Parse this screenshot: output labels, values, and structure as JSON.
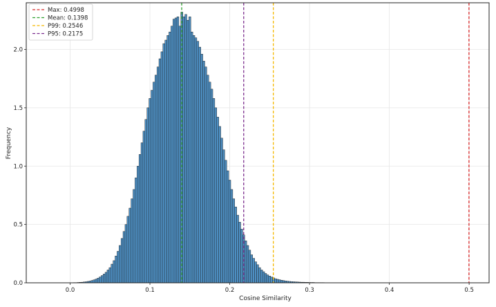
{
  "chart_data": {
    "type": "bar",
    "xlabel": "Cosine Similarity",
    "ylabel": "Frequency",
    "xlim": [
      -0.055,
      0.525
    ],
    "ylim": [
      0,
      2.4
    ],
    "grid": true,
    "legend_position": "top-left",
    "x_ticks": [
      0.0,
      0.1,
      0.2,
      0.3,
      0.4,
      0.5
    ],
    "x_tick_labels": [
      "0.0",
      "0.1",
      "0.2",
      "0.3",
      "0.4",
      "0.5"
    ],
    "y_ticks": [
      0.0,
      0.5,
      1.0,
      1.5,
      2.0
    ],
    "y_tick_labels": [
      "0.0",
      "0.5",
      "1.0",
      "1.5",
      "2.0"
    ],
    "bar_color": "#4e90c4",
    "bar_edge_color": "#1a1a1a",
    "bin_width": 0.0025,
    "histogram": {
      "bin_centers": [
        -0.0025,
        0.0,
        0.0025,
        0.005,
        0.0075,
        0.01,
        0.0125,
        0.015,
        0.0175,
        0.02,
        0.0225,
        0.025,
        0.0275,
        0.03,
        0.0325,
        0.035,
        0.0375,
        0.04,
        0.0425,
        0.045,
        0.0475,
        0.05,
        0.0525,
        0.055,
        0.0575,
        0.06,
        0.0625,
        0.065,
        0.0675,
        0.07,
        0.0725,
        0.075,
        0.0775,
        0.08,
        0.0825,
        0.085,
        0.0875,
        0.09,
        0.0925,
        0.095,
        0.0975,
        0.1,
        0.1025,
        0.105,
        0.1075,
        0.11,
        0.1125,
        0.115,
        0.1175,
        0.12,
        0.1225,
        0.125,
        0.1275,
        0.13,
        0.1325,
        0.135,
        0.1375,
        0.14,
        0.1425,
        0.145,
        0.1475,
        0.15,
        0.1525,
        0.155,
        0.1575,
        0.16,
        0.1625,
        0.165,
        0.1675,
        0.17,
        0.1725,
        0.175,
        0.1775,
        0.18,
        0.1825,
        0.185,
        0.1875,
        0.19,
        0.1925,
        0.195,
        0.1975,
        0.2,
        0.2025,
        0.205,
        0.2075,
        0.21,
        0.2125,
        0.215,
        0.2175,
        0.22,
        0.2225,
        0.225,
        0.2275,
        0.23,
        0.2325,
        0.235,
        0.2375,
        0.24,
        0.2425,
        0.245,
        0.2475,
        0.25,
        0.2525,
        0.255,
        0.2575,
        0.26,
        0.2625,
        0.265,
        0.2675,
        0.27,
        0.2725,
        0.275,
        0.2775,
        0.28,
        0.2825,
        0.285,
        0.2875,
        0.29,
        0.2925,
        0.295,
        0.2975,
        0.3,
        0.3025,
        0.305,
        0.3075,
        0.31,
        0.3125,
        0.315,
        0.3175,
        0.32,
        0.3225,
        0.325,
        0.3275,
        0.33,
        0.3325,
        0.335,
        0.3375,
        0.34,
        0.3425,
        0.345,
        0.3475,
        0.35,
        0.3525,
        0.355,
        0.3575,
        0.36,
        0.3625,
        0.365,
        0.3675,
        0.37,
        0.3725,
        0.375,
        0.3775,
        0.38,
        0.3825,
        0.385
      ],
      "frequencies": [
        0.0,
        0.001,
        0.001,
        0.002,
        0.002,
        0.003,
        0.004,
        0.005,
        0.007,
        0.009,
        0.012,
        0.015,
        0.02,
        0.025,
        0.032,
        0.04,
        0.05,
        0.062,
        0.075,
        0.09,
        0.11,
        0.13,
        0.16,
        0.19,
        0.23,
        0.27,
        0.32,
        0.38,
        0.44,
        0.5,
        0.57,
        0.64,
        0.72,
        0.8,
        0.9,
        1.0,
        1.1,
        1.2,
        1.3,
        1.4,
        1.5,
        1.58,
        1.65,
        1.72,
        1.78,
        1.85,
        1.92,
        1.98,
        2.05,
        2.08,
        2.12,
        2.15,
        2.2,
        2.26,
        2.27,
        2.28,
        2.2,
        2.32,
        2.28,
        2.3,
        2.25,
        2.28,
        2.15,
        2.12,
        2.1,
        2.07,
        2.02,
        1.96,
        1.9,
        1.85,
        1.78,
        1.72,
        1.66,
        1.58,
        1.5,
        1.42,
        1.34,
        1.24,
        1.14,
        1.05,
        0.96,
        0.88,
        0.8,
        0.72,
        0.65,
        0.58,
        0.52,
        0.46,
        0.41,
        0.36,
        0.32,
        0.28,
        0.24,
        0.21,
        0.18,
        0.155,
        0.13,
        0.11,
        0.095,
        0.08,
        0.068,
        0.058,
        0.05,
        0.042,
        0.035,
        0.03,
        0.026,
        0.022,
        0.019,
        0.016,
        0.014,
        0.012,
        0.01,
        0.009,
        0.008,
        0.007,
        0.006,
        0.005,
        0.005,
        0.004,
        0.004,
        0.003,
        0.003,
        0.003,
        0.002,
        0.002,
        0.002,
        0.002,
        0.002,
        0.001,
        0.001,
        0.001,
        0.001,
        0.001,
        0.001,
        0.001,
        0.001,
        0.001,
        0.001,
        0.001,
        0.001,
        0.001,
        0.001,
        0.001,
        0.001,
        0.001,
        0.001,
        0.001,
        0.001,
        0.001,
        0.001,
        0.001,
        0.001,
        0.001,
        0.001
      ]
    },
    "reference_lines": [
      {
        "name": "Max: 0.4998",
        "x": 0.4998,
        "color": "#d62728"
      },
      {
        "name": "Mean: 0.1398",
        "x": 0.1398,
        "color": "#2ca02c"
      },
      {
        "name": "P99: 0.2546",
        "x": 0.2546,
        "color": "#f5b800"
      },
      {
        "name": "P95: 0.2175",
        "x": 0.2175,
        "color": "#7b2d8e"
      }
    ]
  }
}
